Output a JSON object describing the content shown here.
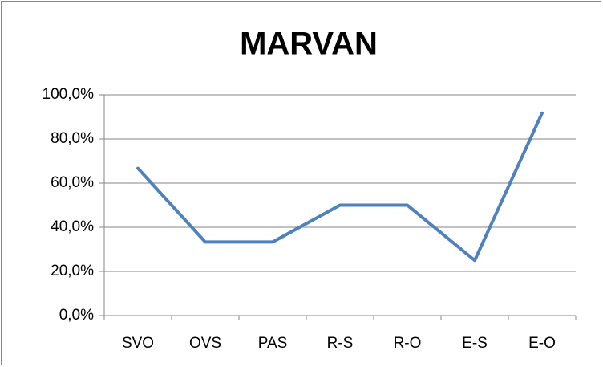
{
  "chart_data": {
    "type": "line",
    "title": "MARVAN",
    "categories": [
      "SVO",
      "OVS",
      "PAS",
      "R-S",
      "R-O",
      "E-S",
      "E-O"
    ],
    "series": [
      {
        "name": "MARVAN",
        "color": "#4f81bd",
        "values": [
          66.7,
          33.3,
          33.3,
          50,
          50,
          25,
          91.7
        ]
      }
    ],
    "ylim": [
      0,
      100
    ],
    "yticks": [
      {
        "value": 0,
        "label": "0,0%"
      },
      {
        "value": 20,
        "label": "20,0%"
      },
      {
        "value": 40,
        "label": "40,0%"
      },
      {
        "value": 60,
        "label": "60,0%"
      },
      {
        "value": 80,
        "label": "80,0%"
      },
      {
        "value": 100,
        "label": "100,0%"
      }
    ],
    "grid": true
  }
}
